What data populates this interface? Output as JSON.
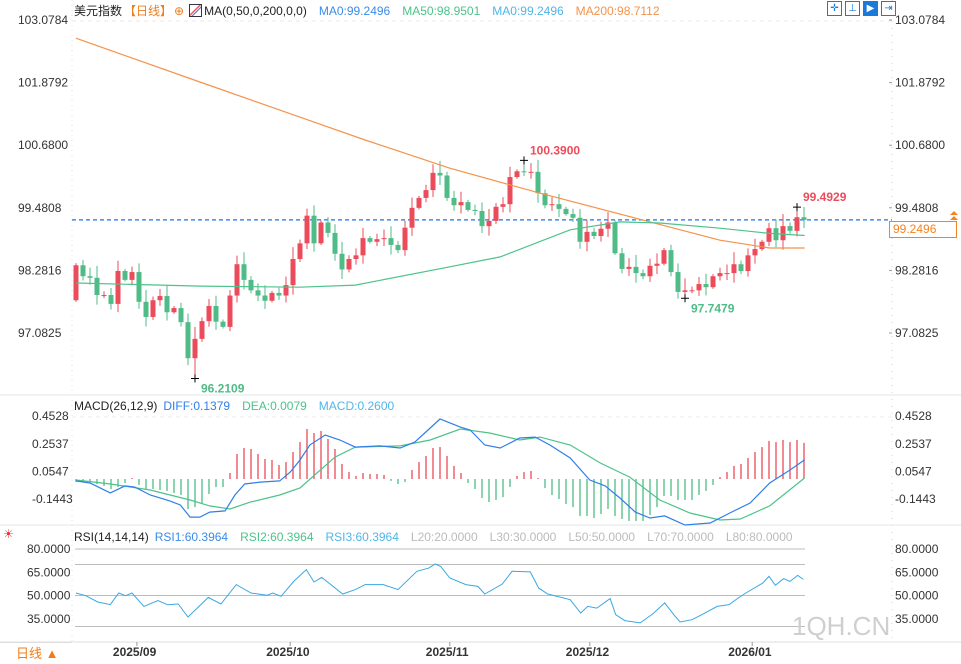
{
  "header": {
    "symbol": "美元指数",
    "period": "【日线】",
    "ma_params": "MA(0,50,0,200,0,0)",
    "ma_values": [
      "MA0:99.2496",
      "MA50:98.9501",
      "MA0:99.2496",
      "MA200:98.7112"
    ],
    "toolbar_icons": [
      "crosshair-icon",
      "range-icon",
      "play-icon",
      "move-right-icon"
    ]
  },
  "colors": {
    "up": "#eb4b5a",
    "down": "#4fbb86",
    "ma0": "#3b8be8",
    "ma50": "#4cc38a",
    "ma0b": "#4fb6e8",
    "ma200": "#f5924a",
    "dash": "#1a73e8",
    "accent": "#f58220"
  },
  "main_axis": {
    "ticks": [
      "103.0784",
      "101.8792",
      "100.6800",
      "99.4808",
      "98.2816",
      "97.0825"
    ],
    "range": [
      97.0825,
      103.0784
    ]
  },
  "last_price": "99.2496",
  "annotations": [
    {
      "text": "96.2109",
      "index": 17,
      "price": 96.2109,
      "kind": "low"
    },
    {
      "text": "100.3900",
      "index": 64,
      "price": 100.39,
      "kind": "high"
    },
    {
      "text": "97.7479",
      "index": 87,
      "price": 97.7479,
      "kind": "low"
    },
    {
      "text": "99.4929",
      "index": 103,
      "price": 99.4929,
      "kind": "high"
    }
  ],
  "chart_data": [
    {
      "type": "candlestick",
      "title": "美元指数 日线",
      "first_open": 97.71,
      "closes": [
        98.38,
        98.17,
        98.14,
        97.81,
        97.81,
        97.64,
        98.27,
        98.1,
        98.25,
        97.68,
        97.39,
        97.71,
        97.79,
        97.48,
        97.56,
        97.29,
        96.6,
        96.97,
        97.31,
        97.6,
        97.3,
        97.2,
        97.8,
        98.4,
        98.1,
        97.9,
        97.8,
        97.7,
        97.85,
        97.8,
        98.0,
        98.5,
        98.8,
        99.33,
        98.8,
        99.2,
        99.0,
        98.6,
        98.3,
        98.5,
        98.57,
        98.9,
        98.83,
        98.88,
        98.9,
        98.77,
        98.67,
        99.1,
        99.48,
        99.67,
        99.82,
        100.15,
        100.1,
        99.67,
        99.53,
        99.59,
        99.44,
        99.42,
        99.13,
        99.23,
        99.5,
        99.55,
        100.07,
        100.18,
        100.17,
        100.17,
        99.76,
        99.53,
        99.55,
        99.46,
        99.36,
        99.29,
        98.83,
        99.02,
        98.94,
        99.08,
        99.2,
        98.61,
        98.31,
        98.35,
        98.23,
        98.17,
        98.37,
        98.41,
        98.67,
        98.25,
        97.87,
        97.9,
        97.9,
        98.02,
        97.96,
        98.17,
        98.23,
        98.23,
        98.4,
        98.27,
        98.57,
        98.69,
        98.83,
        99.09,
        98.86,
        99.13,
        99.04,
        99.3,
        99.25
      ],
      "ma50": [
        [
          0,
          98.04
        ],
        [
          17.7,
          97.98
        ],
        [
          32,
          97.96
        ],
        [
          39.9,
          98.0
        ],
        [
          53.4,
          98.35
        ],
        [
          60.6,
          98.54
        ],
        [
          70.6,
          99.06
        ],
        [
          77.7,
          99.21
        ],
        [
          83.4,
          99.19
        ],
        [
          92,
          99.09
        ],
        [
          99.1,
          98.99
        ],
        [
          104.1,
          98.95
        ]
      ],
      "ma200": [
        [
          0,
          102.73
        ],
        [
          17.7,
          101.89
        ],
        [
          41.3,
          100.78
        ],
        [
          53.4,
          100.24
        ],
        [
          66.3,
          99.76
        ],
        [
          82,
          99.21
        ],
        [
          92,
          98.86
        ],
        [
          99.1,
          98.71
        ],
        [
          104.1,
          98.71
        ]
      ],
      "x_labels": [
        [
          "2025/09",
          8.7
        ],
        [
          "2025/10",
          30.6
        ],
        [
          "2025/11",
          53.4
        ],
        [
          "2025/12",
          73.4
        ],
        [
          "2026/01",
          96.6
        ]
      ]
    },
    {
      "type": "macd",
      "title": "MACD(26,12,9)",
      "legend": [
        "DIFF:0.1379",
        "DEA:0.0079",
        "MACD:0.2600"
      ],
      "ticks": [
        "0.4528",
        "0.2537",
        "0.0547",
        "-0.1443"
      ],
      "tick_values": [
        0.4528,
        0.2537,
        0.0547,
        -0.1443
      ],
      "histogram": [
        -0.022,
        -0.022,
        -0.022,
        -0.036,
        -0.05,
        -0.072,
        -0.058,
        -0.029,
        0.007,
        -0.043,
        -0.072,
        -0.072,
        -0.079,
        -0.086,
        -0.101,
        -0.115,
        -0.216,
        -0.202,
        -0.18,
        -0.108,
        -0.058,
        -0.058,
        0.043,
        0.18,
        0.223,
        0.216,
        0.18,
        0.144,
        0.137,
        0.101,
        0.122,
        0.194,
        0.266,
        0.36,
        0.331,
        0.346,
        0.288,
        0.216,
        0.108,
        0.05,
        0.022,
        0.043,
        0.036,
        0.036,
        0.029,
        -0.014,
        -0.036,
        -0.022,
        0.065,
        0.122,
        0.166,
        0.223,
        0.23,
        0.166,
        0.094,
        0.043,
        -0.029,
        -0.072,
        -0.137,
        -0.166,
        -0.151,
        -0.13,
        -0.058,
        0.022,
        0.05,
        0.058,
        0.007,
        -0.065,
        -0.115,
        -0.144,
        -0.18,
        -0.202,
        -0.266,
        -0.266,
        -0.281,
        -0.252,
        -0.216,
        -0.266,
        -0.288,
        -0.302,
        -0.302,
        -0.302,
        -0.259,
        -0.202,
        -0.122,
        -0.122,
        -0.151,
        -0.151,
        -0.151,
        -0.115,
        -0.086,
        -0.043,
        0.014,
        0.05,
        0.094,
        0.108,
        0.151,
        0.194,
        0.23,
        0.274,
        0.266,
        0.281,
        0.266,
        0.281,
        0.26
      ],
      "diff": [
        [
          0,
          -0.014
        ],
        [
          2,
          -0.029
        ],
        [
          4.9,
          -0.1
        ],
        [
          7,
          -0.05
        ],
        [
          8.4,
          -0.058
        ],
        [
          10.6,
          -0.115
        ],
        [
          13.4,
          -0.158
        ],
        [
          14.9,
          -0.187
        ],
        [
          16.3,
          -0.274
        ],
        [
          17.7,
          -0.274
        ],
        [
          19.1,
          -0.238
        ],
        [
          21.3,
          -0.23
        ],
        [
          22.7,
          -0.115
        ],
        [
          24.1,
          -0.036
        ],
        [
          26.3,
          -0.022
        ],
        [
          29.1,
          -0.014
        ],
        [
          30.6,
          0.05
        ],
        [
          32,
          0.137
        ],
        [
          33.4,
          0.245
        ],
        [
          35.6,
          0.317
        ],
        [
          37.7,
          0.281
        ],
        [
          39.9,
          0.23
        ],
        [
          43.4,
          0.238
        ],
        [
          46.3,
          0.223
        ],
        [
          48.4,
          0.266
        ],
        [
          50.6,
          0.367
        ],
        [
          52,
          0.432
        ],
        [
          54.9,
          0.374
        ],
        [
          56.3,
          0.353
        ],
        [
          58.4,
          0.245
        ],
        [
          60.6,
          0.223
        ],
        [
          63.4,
          0.295
        ],
        [
          65.6,
          0.302
        ],
        [
          67.7,
          0.245
        ],
        [
          70.6,
          0.151
        ],
        [
          73.4,
          -0.007
        ],
        [
          75.6,
          -0.05
        ],
        [
          77.7,
          -0.137
        ],
        [
          79.9,
          -0.238
        ],
        [
          82,
          -0.281
        ],
        [
          84.1,
          -0.266
        ],
        [
          87,
          -0.331
        ],
        [
          90.6,
          -0.317
        ],
        [
          93.4,
          -0.245
        ],
        [
          96.3,
          -0.173
        ],
        [
          99.1,
          -0.029
        ],
        [
          102,
          0.065
        ],
        [
          104.1,
          0.138
        ]
      ],
      "dea": [
        [
          0,
          -0.007
        ],
        [
          4.9,
          -0.036
        ],
        [
          10.6,
          -0.079
        ],
        [
          16.3,
          -0.151
        ],
        [
          19.1,
          -0.194
        ],
        [
          22,
          -0.216
        ],
        [
          24.9,
          -0.166
        ],
        [
          29.1,
          -0.115
        ],
        [
          32,
          -0.065
        ],
        [
          34.1,
          0.029
        ],
        [
          37,
          0.158
        ],
        [
          39.9,
          0.23
        ],
        [
          46.3,
          0.238
        ],
        [
          50.6,
          0.281
        ],
        [
          54.9,
          0.36
        ],
        [
          59.1,
          0.331
        ],
        [
          63.4,
          0.281
        ],
        [
          66.3,
          0.302
        ],
        [
          70.6,
          0.245
        ],
        [
          74.9,
          0.115
        ],
        [
          79.1,
          0.014
        ],
        [
          83.4,
          -0.151
        ],
        [
          87.7,
          -0.245
        ],
        [
          92,
          -0.295
        ],
        [
          94.9,
          -0.288
        ],
        [
          99.1,
          -0.194
        ],
        [
          104.1,
          0.008
        ]
      ]
    },
    {
      "type": "line",
      "title": "RSI(14,14,14)",
      "legend": [
        "RSI1:60.3964",
        "RSI2:60.3964",
        "RSI3:60.3964",
        "L20:20.0000",
        "L30:30.0000",
        "L50:50.0000",
        "L70:70.0000",
        "L80:80.0000"
      ],
      "ticks": [
        "80.0000",
        "65.0000",
        "50.0000",
        "35.0000"
      ],
      "tick_values": [
        80,
        65,
        50,
        35
      ],
      "levels": [
        80,
        70,
        50,
        30,
        20
      ],
      "rsi": [
        [
          0,
          51.6
        ],
        [
          1.4,
          49.9
        ],
        [
          3.1,
          45.8
        ],
        [
          4.9,
          44.1
        ],
        [
          6.1,
          51.6
        ],
        [
          7.1,
          49.9
        ],
        [
          8,
          51.6
        ],
        [
          9.7,
          43
        ],
        [
          11.7,
          46.7
        ],
        [
          13.1,
          44
        ],
        [
          14.6,
          44.5
        ],
        [
          16,
          36.1
        ],
        [
          18.9,
          48.8
        ],
        [
          20.7,
          44.5
        ],
        [
          22.9,
          57
        ],
        [
          25,
          51.6
        ],
        [
          27.3,
          50.1
        ],
        [
          28.1,
          51.6
        ],
        [
          29.3,
          49.5
        ],
        [
          31.1,
          59.1
        ],
        [
          32.9,
          66.7
        ],
        [
          34,
          58.7
        ],
        [
          35.1,
          61.7
        ],
        [
          38.1,
          51
        ],
        [
          39.9,
          53.8
        ],
        [
          41.3,
          57
        ],
        [
          43.9,
          57
        ],
        [
          46,
          53.8
        ],
        [
          48.7,
          65.6
        ],
        [
          50.4,
          67.7
        ],
        [
          51.3,
          70.3
        ],
        [
          52.1,
          68.8
        ],
        [
          53.4,
          61.3
        ],
        [
          55.7,
          57
        ],
        [
          57.4,
          55.9
        ],
        [
          58.4,
          51
        ],
        [
          60.9,
          57.4
        ],
        [
          62.3,
          65.6
        ],
        [
          64.9,
          65.2
        ],
        [
          66.1,
          54.8
        ],
        [
          67.4,
          51
        ],
        [
          70.6,
          47.3
        ],
        [
          72.1,
          38.7
        ],
        [
          73.1,
          43
        ],
        [
          74.4,
          41.9
        ],
        [
          76.3,
          48
        ],
        [
          77.1,
          37.6
        ],
        [
          78.4,
          33.8
        ],
        [
          80.6,
          32.3
        ],
        [
          82.4,
          38.1
        ],
        [
          84.1,
          45.2
        ],
        [
          85.4,
          37.6
        ],
        [
          86.3,
          32.9
        ],
        [
          88,
          34.4
        ],
        [
          89.4,
          37.6
        ],
        [
          91.6,
          43
        ],
        [
          93.3,
          44.1
        ],
        [
          94.6,
          48.4
        ],
        [
          95.7,
          51.6
        ],
        [
          98.1,
          58
        ],
        [
          99,
          62.4
        ],
        [
          99.9,
          56.6
        ],
        [
          101.1,
          60.9
        ],
        [
          102,
          59.1
        ],
        [
          103.1,
          63
        ],
        [
          103.9,
          60.4
        ]
      ]
    }
  ],
  "footer": {
    "period_button": "日线 ▲",
    "watermark": "1QH.CN"
  }
}
